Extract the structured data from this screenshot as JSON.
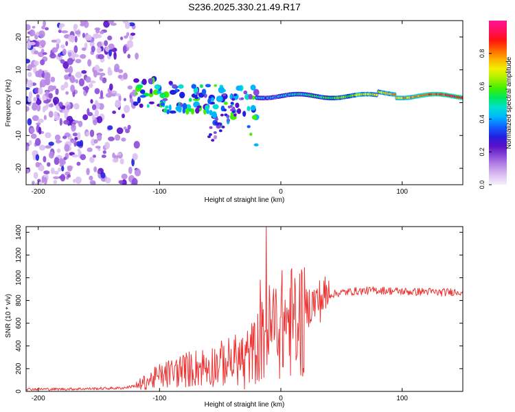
{
  "title": "S236.2025.330.21.49.R17",
  "colors": {
    "snr_line": "#ee3333",
    "axis": "#000000",
    "colormap": [
      "#f6f0fb",
      "#dcc1f2",
      "#b98ae6",
      "#8a4ad8",
      "#5a10c8",
      "#2020e0",
      "#1060ff",
      "#00b4ff",
      "#00e0d0",
      "#00e860",
      "#40f000",
      "#a8f000",
      "#f0f000",
      "#ffb000",
      "#ff6000",
      "#ff1010",
      "#ff1060",
      "#ff1493"
    ]
  },
  "chart_data": [
    {
      "type": "heatmap",
      "name": "spectrogram",
      "xlabel": "Height of straight line (km)",
      "ylabel": "Frequency (Hz)",
      "xlim": [
        -210,
        150
      ],
      "ylim": [
        -25,
        25
      ],
      "xticks": [
        -200,
        -100,
        0,
        100
      ],
      "yticks": [
        -20,
        -10,
        0,
        10,
        20
      ],
      "colorbar": {
        "label": "Normalized spectral amplitude",
        "range": [
          0,
          1
        ],
        "ticks": [
          0.0,
          0.2,
          0.4,
          0.6,
          0.8
        ]
      },
      "features": {
        "noise_region_km": [
          -210,
          -118
        ],
        "ridge_frequency_hz": 2,
        "ridge_start_km": -20
      }
    },
    {
      "type": "line",
      "name": "snr",
      "xlabel": "Height of straight line (km)",
      "ylabel": "SNR (10 * v/v)",
      "xlim": [
        -210,
        150
      ],
      "ylim": [
        0,
        1450
      ],
      "xticks": [
        -200,
        -100,
        0,
        100
      ],
      "yticks": [
        0,
        200,
        400,
        600,
        800,
        1000,
        1200,
        1400
      ],
      "series": [
        {
          "name": "SNR",
          "x": [
            -210,
            -180,
            -150,
            -130,
            -120,
            -110,
            -100,
            -90,
            -80,
            -70,
            -60,
            -50,
            -40,
            -30,
            -25,
            -22,
            -20,
            -18,
            -15,
            -12,
            -10,
            -8,
            -5,
            0,
            5,
            10,
            15,
            20,
            25,
            30,
            35,
            40,
            45,
            50,
            60,
            70,
            80,
            90,
            100,
            110,
            120,
            130,
            140,
            150
          ],
          "y": [
            20,
            20,
            25,
            30,
            50,
            100,
            150,
            180,
            210,
            230,
            250,
            270,
            300,
            330,
            360,
            400,
            420,
            450,
            500,
            560,
            580,
            610,
            640,
            650,
            680,
            680,
            700,
            730,
            770,
            790,
            820,
            850,
            860,
            870,
            880,
            885,
            890,
            885,
            880,
            875,
            880,
            870,
            875,
            880
          ]
        }
      ],
      "spikes": [
        {
          "x": -12,
          "y": 1450
        },
        {
          "x": -17,
          "y": 980
        },
        {
          "x": -30,
          "y": 20
        },
        {
          "x": 13,
          "y": 300
        }
      ]
    }
  ]
}
